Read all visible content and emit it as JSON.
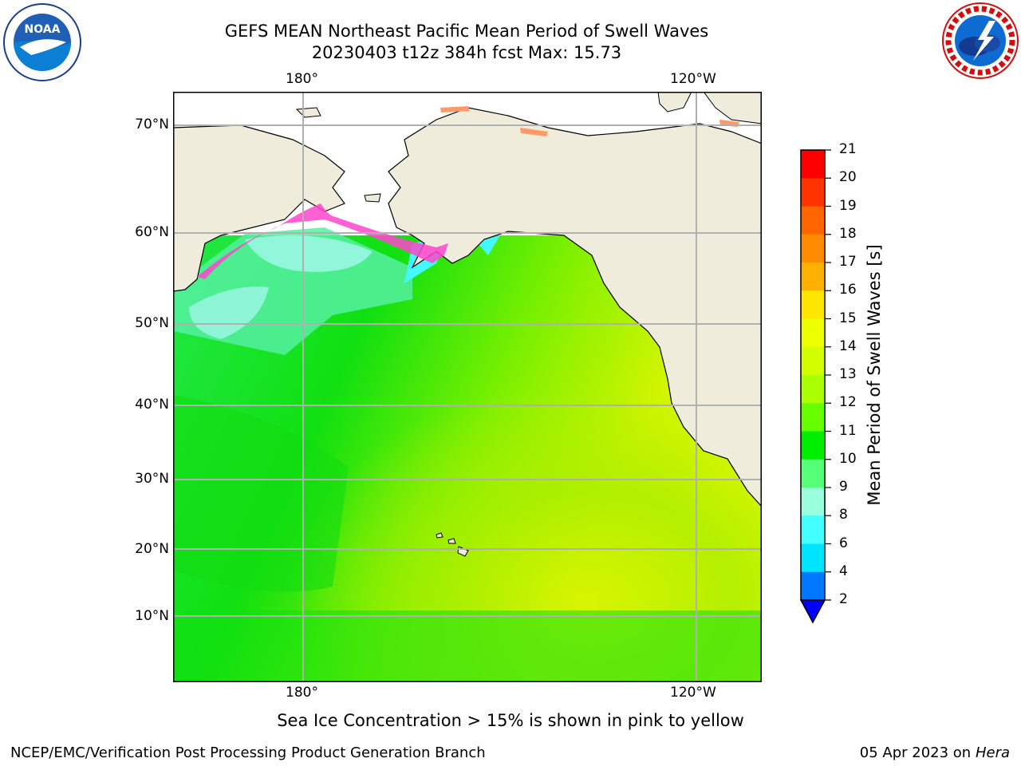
{
  "title": {
    "line1": "GEFS MEAN Northeast Pacific Mean Period of Swell Waves",
    "line2": "20230403 t12z 384h fcst   Max: 15.73"
  },
  "logos": {
    "left_icon": "noaa-logo-icon",
    "left_text": "NOAA",
    "right_icon": "nws-logo-icon",
    "right_text": "NATIONAL WEATHER SERVICE"
  },
  "map": {
    "lon_labels": [
      "180°",
      "120°W"
    ],
    "lat_labels": [
      "70°N",
      "60°N",
      "50°N",
      "40°N",
      "30°N",
      "20°N",
      "10°N"
    ],
    "colors": {
      "land": "#efecdc",
      "grid": "#b0b0b0",
      "coast": "#000000"
    }
  },
  "colorbar": {
    "title": "Mean Period of Swell Waves [s]",
    "ticks": [
      "21",
      "20",
      "19",
      "18",
      "17",
      "16",
      "15",
      "14",
      "13",
      "12",
      "11",
      "10",
      "9",
      "8",
      "6",
      "4",
      "2"
    ],
    "colors": [
      "#ff0000",
      "#ff3300",
      "#ff6600",
      "#ff8c00",
      "#ffb000",
      "#ffe600",
      "#eeff00",
      "#d2ff00",
      "#aaff00",
      "#66ff00",
      "#00ee00",
      "#55ff77",
      "#99ffdd",
      "#44ffff",
      "#00e5ff",
      "#0077ff",
      "#0000ff"
    ]
  },
  "footnote": "Sea Ice Concentration > 15% is shown in pink to yellow",
  "credit": "NCEP/EMC/Verification Post Processing Product Generation Branch",
  "date": {
    "text": "05 Apr 2023 on ",
    "machine": "Hera"
  }
}
